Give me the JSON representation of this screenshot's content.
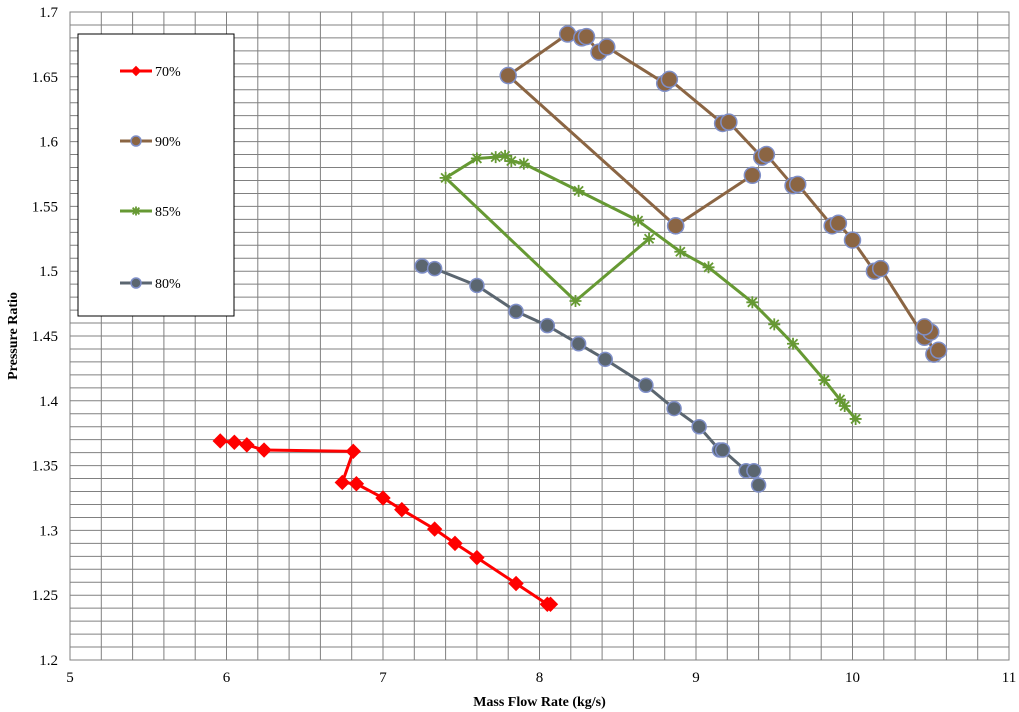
{
  "chart_data": {
    "type": "line",
    "title": "",
    "xlabel": "Mass Flow Rate (kg/s)",
    "ylabel": "Pressure Ratio",
    "xlim": [
      5,
      11
    ],
    "ylim": [
      1.2,
      1.7
    ],
    "x_ticks": [
      "5",
      "6",
      "7",
      "8",
      "9",
      "10",
      "11"
    ],
    "y_ticks": [
      "1.2",
      "1.25",
      "1.3",
      "1.35",
      "1.4",
      "1.45",
      "1.5",
      "1.55",
      "1.6",
      "1.65",
      "1.7"
    ],
    "grid": true,
    "legend_position": "top-left",
    "series": [
      {
        "name": "70%",
        "color": "#ff0000",
        "marker": "diamond",
        "points": [
          [
            5.96,
            1.369
          ],
          [
            6.05,
            1.368
          ],
          [
            6.13,
            1.366
          ],
          [
            6.24,
            1.362
          ],
          [
            6.81,
            1.361
          ],
          [
            6.74,
            1.337
          ],
          [
            6.83,
            1.336
          ],
          [
            7.0,
            1.325
          ],
          [
            7.12,
            1.316
          ],
          [
            7.33,
            1.301
          ],
          [
            7.46,
            1.29
          ],
          [
            7.6,
            1.279
          ],
          [
            7.85,
            1.259
          ],
          [
            8.05,
            1.243
          ],
          [
            8.07,
            1.243
          ]
        ]
      },
      {
        "name": "90%",
        "color": "#8b6543",
        "marker": "circle",
        "points": [
          [
            8.87,
            1.535
          ],
          [
            7.8,
            1.651
          ],
          [
            8.18,
            1.683
          ],
          [
            8.27,
            1.68
          ],
          [
            8.3,
            1.681
          ],
          [
            8.38,
            1.669
          ],
          [
            8.43,
            1.673
          ],
          [
            8.8,
            1.645
          ],
          [
            8.83,
            1.648
          ],
          [
            9.17,
            1.614
          ],
          [
            9.21,
            1.615
          ],
          [
            9.42,
            1.588
          ],
          [
            9.45,
            1.59
          ],
          [
            9.62,
            1.566
          ],
          [
            9.65,
            1.567
          ],
          [
            9.87,
            1.535
          ],
          [
            9.91,
            1.537
          ],
          [
            10.0,
            1.524
          ],
          [
            10.14,
            1.5
          ],
          [
            10.18,
            1.502
          ],
          [
            10.46,
            1.449
          ],
          [
            10.5,
            1.453
          ],
          [
            10.46,
            1.457
          ],
          [
            10.52,
            1.436
          ],
          [
            10.55,
            1.439
          ]
        ],
        "extra_segments": [
          [
            [
              8.87,
              1.535
            ],
            [
              9.36,
              1.574
            ]
          ]
        ]
      },
      {
        "name": "85%",
        "color": "#669933",
        "marker": "star",
        "points": [
          [
            8.7,
            1.525
          ],
          [
            8.23,
            1.477
          ],
          [
            7.4,
            1.572
          ],
          [
            7.6,
            1.587
          ],
          [
            7.72,
            1.588
          ],
          [
            7.78,
            1.589
          ],
          [
            7.82,
            1.585
          ],
          [
            7.9,
            1.583
          ],
          [
            8.25,
            1.562
          ],
          [
            8.63,
            1.539
          ],
          [
            8.9,
            1.515
          ],
          [
            9.08,
            1.503
          ],
          [
            9.36,
            1.476
          ],
          [
            9.5,
            1.459
          ],
          [
            9.62,
            1.444
          ],
          [
            9.82,
            1.416
          ],
          [
            9.92,
            1.401
          ],
          [
            9.95,
            1.396
          ],
          [
            10.02,
            1.386
          ]
        ]
      },
      {
        "name": "80%",
        "color": "#5b6670",
        "marker": "circle",
        "points": [
          [
            7.25,
            1.504
          ],
          [
            7.33,
            1.502
          ],
          [
            7.6,
            1.489
          ],
          [
            7.85,
            1.469
          ],
          [
            8.05,
            1.458
          ],
          [
            8.25,
            1.444
          ],
          [
            8.42,
            1.432
          ],
          [
            8.68,
            1.412
          ],
          [
            8.86,
            1.394
          ],
          [
            9.02,
            1.38
          ],
          [
            9.15,
            1.362
          ],
          [
            9.17,
            1.362
          ],
          [
            9.32,
            1.346
          ],
          [
            9.37,
            1.346
          ],
          [
            9.4,
            1.335
          ]
        ]
      }
    ]
  }
}
